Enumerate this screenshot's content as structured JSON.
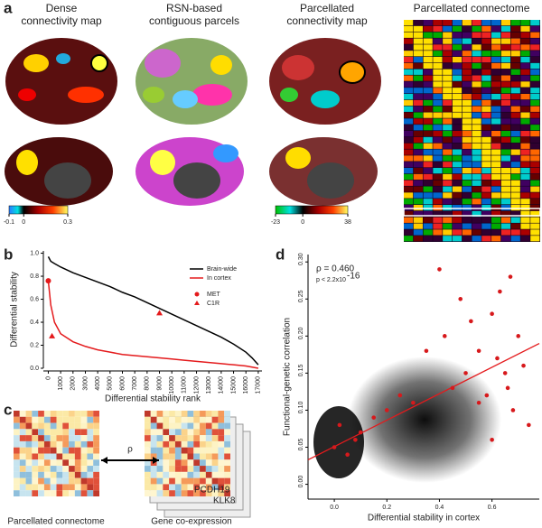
{
  "panel_a": {
    "label": "a",
    "titles": [
      [
        "Dense",
        "connectivity map"
      ],
      [
        "RSN-based",
        "contiguous parcels"
      ],
      [
        "Parcellated",
        "connectivity map"
      ],
      [
        "Parcellated connectome"
      ]
    ],
    "colorbar_dense": {
      "lim": [
        -0.1,
        0.3
      ],
      "ticks": [
        -0.1,
        0,
        0.3
      ]
    },
    "colorbar_parcel": {
      "lim": [
        -23,
        38
      ],
      "ticks": [
        -23,
        0,
        38
      ]
    }
  },
  "chart_data": [
    {
      "type": "line",
      "label": "b",
      "xlabel": "Differential stability rank",
      "ylabel": "Differential stability",
      "x": [
        0,
        200,
        500,
        1000,
        2000,
        3000,
        4000,
        5000,
        6000,
        7000,
        8000,
        9000,
        10000,
        11000,
        12000,
        13000,
        14000,
        15000,
        16000,
        16500,
        17000
      ],
      "series": [
        {
          "name": "Brain-wide",
          "color": "#000000",
          "values": [
            0.97,
            0.93,
            0.91,
            0.88,
            0.83,
            0.79,
            0.75,
            0.71,
            0.66,
            0.62,
            0.57,
            0.52,
            0.47,
            0.42,
            0.37,
            0.32,
            0.27,
            0.21,
            0.14,
            0.09,
            0.03
          ]
        },
        {
          "name": "In cortex",
          "color": "#e41a1c",
          "values": [
            0.76,
            0.55,
            0.4,
            0.3,
            0.23,
            0.19,
            0.16,
            0.14,
            0.12,
            0.11,
            0.1,
            0.09,
            0.08,
            0.07,
            0.06,
            0.05,
            0.04,
            0.03,
            0.02,
            0.01,
            0.0
          ]
        }
      ],
      "markers": [
        {
          "name": "MET",
          "shape": "circle",
          "color": "#e41a1c",
          "x": [
            0
          ],
          "y": [
            0.76
          ]
        },
        {
          "name": "C1R",
          "shape": "triangle",
          "color": "#e41a1c",
          "x": [
            300,
            9000
          ],
          "y": [
            0.28,
            0.48
          ]
        }
      ],
      "xlim": [
        -400,
        17300
      ],
      "ylim": [
        0,
        1.02
      ],
      "xticks": [
        0,
        1000,
        2000,
        3000,
        4000,
        5000,
        6000,
        7000,
        8000,
        9000,
        10000,
        11000,
        12000,
        13000,
        14000,
        15000,
        16000,
        17000
      ],
      "yticks": [
        {
          "value": 0,
          "label": "0.0"
        },
        {
          "value": 0.2,
          "label": "0.2"
        },
        {
          "value": 0.4,
          "label": "0.4"
        },
        {
          "value": 0.6,
          "label": "0.6"
        },
        {
          "value": 0.8,
          "label": "0.8"
        },
        {
          "value": 1,
          "label": "1.0"
        }
      ]
    },
    {
      "type": "scatter",
      "label": "d",
      "xlabel": "Differential stability in cortex",
      "ylabel": "Functional-genetic correlation",
      "annotation": [
        "ρ = 0.460",
        "p < 2.2x10",
        "-16"
      ],
      "series": [
        {
          "color": "#d7191c",
          "x": [
            0.0,
            0.02,
            0.05,
            0.08,
            0.1,
            0.15,
            0.2,
            0.25,
            0.3,
            0.35,
            0.4,
            0.42,
            0.45,
            0.5,
            0.52,
            0.55,
            0.58,
            0.6,
            0.62,
            0.63,
            0.65,
            0.67,
            0.68,
            0.7,
            0.72,
            0.74,
            0.6,
            0.55,
            0.48,
            0.66
          ],
          "values": [
            0.05,
            0.08,
            0.04,
            0.06,
            0.07,
            0.09,
            0.1,
            0.12,
            0.11,
            0.18,
            0.29,
            0.2,
            0.13,
            0.15,
            0.22,
            0.18,
            0.12,
            0.23,
            0.17,
            0.26,
            0.15,
            0.28,
            0.1,
            0.2,
            0.16,
            0.08,
            0.06,
            0.11,
            0.25,
            0.13
          ]
        }
      ],
      "fit": {
        "color": "#e41a1c",
        "x": [
          -0.1,
          0.78
        ],
        "y": [
          0.033,
          0.19
        ]
      },
      "xlim": [
        -0.1,
        0.78
      ],
      "ylim": [
        -0.02,
        0.31
      ],
      "xticks": [
        {
          "value": 0,
          "label": "0.0"
        },
        0.2,
        0.4,
        0.6
      ],
      "yticks": [
        {
          "value": 0,
          "label": "0.00"
        },
        0.05,
        {
          "value": 0.1,
          "label": "0.10"
        },
        0.15,
        {
          "value": 0.2,
          "label": "0.20"
        },
        0.25,
        {
          "value": 0.3,
          "label": "0.30"
        }
      ]
    }
  ],
  "panel_c": {
    "label": "c",
    "rho": "ρ",
    "genes": [
      "PCDH19",
      "KLK8"
    ],
    "captions": [
      "Parcellated connectome",
      "Gene co-expression"
    ]
  }
}
